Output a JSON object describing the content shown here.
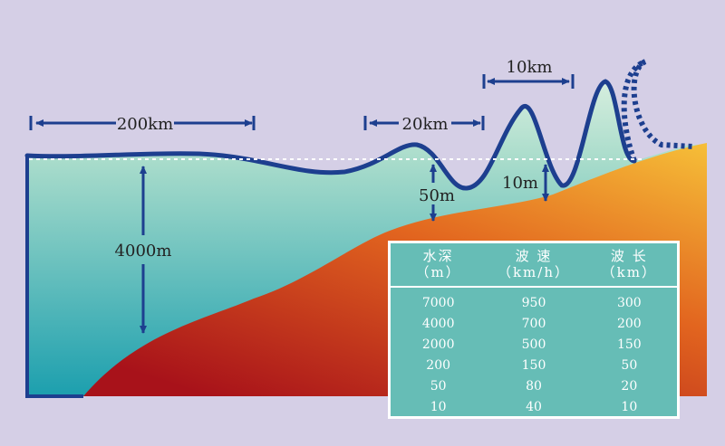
{
  "labels": {
    "wavelength_open_ocean": "200km",
    "wavelength_mid": "20km",
    "wavelength_near_shore": "10km",
    "ocean_depth": "4000m",
    "mid_depth": "50m",
    "shore_depth": "10m"
  },
  "table": {
    "headers": [
      {
        "name": "水深",
        "unit": "（m）"
      },
      {
        "name": "波 速",
        "unit": "（km/h）"
      },
      {
        "name": "波 长",
        "unit": "（km）"
      }
    ],
    "rows": [
      [
        "7000",
        "950",
        "300"
      ],
      [
        "4000",
        "700",
        "200"
      ],
      [
        "2000",
        "500",
        "150"
      ],
      [
        "200",
        "150",
        "50"
      ],
      [
        "50",
        "80",
        "20"
      ],
      [
        "10",
        "40",
        "10"
      ]
    ]
  },
  "colors": {
    "background": "#d5cfe6",
    "water_top": "#cfe9dc",
    "water_bottom": "#1c9fae",
    "seabed_light": "#f2b233",
    "seabed_dark": "#a8121a",
    "wave_line": "#1d3f8f",
    "table_bg": "#66bdb6"
  }
}
